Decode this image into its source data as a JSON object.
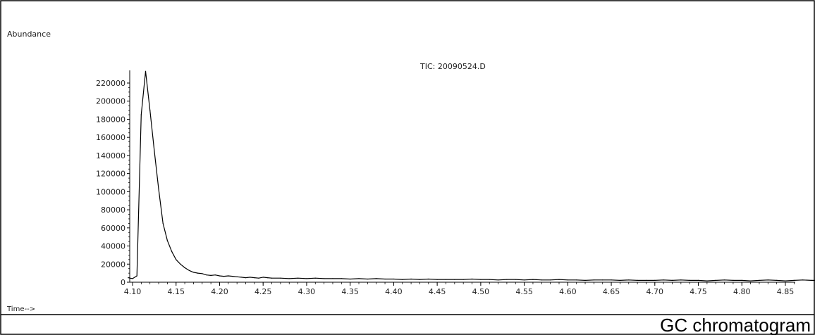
{
  "chart_data": {
    "type": "line",
    "title": "TIC: 20090524.D",
    "ylabel": "Abundance",
    "xlabel": "Time-->",
    "caption": "GC chromatogram",
    "xlim": [
      4.095,
      4.9
    ],
    "ylim": [
      0,
      230000
    ],
    "x_ticks": [
      "4.10",
      "4.15",
      "4.20",
      "4.25",
      "4.30",
      "4.35",
      "4.40",
      "4.45",
      "4.50",
      "4.55",
      "4.60",
      "4.65",
      "4.70",
      "4.75",
      "4.80",
      "4.85"
    ],
    "y_ticks": [
      "0",
      "20000",
      "40000",
      "60000",
      "80000",
      "100000",
      "120000",
      "140000",
      "160000",
      "180000",
      "200000",
      "220000"
    ],
    "series": [
      {
        "x": [
          4.095,
          4.1,
          4.105,
          4.11,
          4.115,
          4.12,
          4.125,
          4.13,
          4.135,
          4.14,
          4.145,
          4.15,
          4.155,
          4.16,
          4.165,
          4.17,
          4.175,
          4.18,
          4.185,
          4.19,
          4.195,
          4.2,
          4.205,
          4.21,
          4.215,
          4.22,
          4.225,
          4.23,
          4.235,
          4.24,
          4.245,
          4.25,
          4.255,
          4.26,
          4.27,
          4.28,
          4.29,
          4.3,
          4.31,
          4.32,
          4.33,
          4.34,
          4.35,
          4.36,
          4.37,
          4.38,
          4.39,
          4.4,
          4.41,
          4.42,
          4.43,
          4.44,
          4.45,
          4.46,
          4.47,
          4.48,
          4.49,
          4.5,
          4.51,
          4.52,
          4.53,
          4.54,
          4.55,
          4.56,
          4.57,
          4.58,
          4.59,
          4.6,
          4.61,
          4.62,
          4.63,
          4.64,
          4.65,
          4.66,
          4.67,
          4.68,
          4.69,
          4.7,
          4.71,
          4.72,
          4.73,
          4.74,
          4.75,
          4.76,
          4.77,
          4.78,
          4.79,
          4.8,
          4.81,
          4.82,
          4.83,
          4.84,
          4.85,
          4.86,
          4.87,
          4.88,
          4.89,
          4.9
        ],
        "y": [
          5000,
          4000,
          7000,
          185000,
          233000,
          190000,
          145000,
          103000,
          65000,
          46000,
          34000,
          25000,
          20000,
          16000,
          13000,
          11000,
          10000,
          9500,
          8000,
          7500,
          8000,
          7000,
          6500,
          7000,
          6500,
          6000,
          5500,
          5000,
          5500,
          5000,
          4500,
          5500,
          5000,
          4500,
          4500,
          4000,
          4500,
          4000,
          4500,
          4000,
          4000,
          4000,
          3500,
          4000,
          3500,
          4000,
          3500,
          3500,
          3000,
          3500,
          3000,
          3500,
          3000,
          3000,
          3000,
          3000,
          3500,
          3000,
          3000,
          2500,
          3000,
          3000,
          2500,
          3000,
          2500,
          2500,
          3000,
          2500,
          2500,
          2000,
          2500,
          2500,
          2500,
          2000,
          2500,
          2000,
          2000,
          2000,
          2500,
          2000,
          2500,
          2000,
          2000,
          1500,
          2000,
          2500,
          2000,
          2000,
          1500,
          2000,
          2500,
          2000,
          1500,
          2000,
          2500,
          2000,
          2000,
          2500
        ]
      }
    ]
  }
}
